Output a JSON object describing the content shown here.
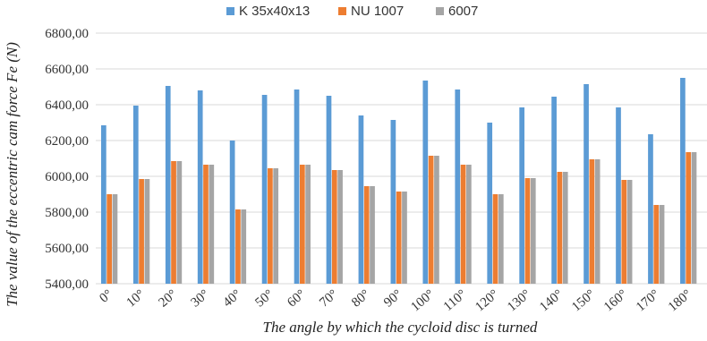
{
  "chart_data": {
    "type": "bar",
    "xlabel": "The angle by which the cycloid disc is turned",
    "ylabel": "The value of the eccentric cam force Fe (N)",
    "categories": [
      "0°",
      "10°",
      "20°",
      "30°",
      "40°",
      "50°",
      "60°",
      "70°",
      "80°",
      "90°",
      "100°",
      "110°",
      "120°",
      "130°",
      "140°",
      "150°",
      "160°",
      "170°",
      "180°"
    ],
    "series": [
      {
        "name": "K 35x40x13",
        "color": "#5b9bd5",
        "values": [
          6285,
          6395,
          6505,
          6480,
          6200,
          6455,
          6485,
          6450,
          6340,
          6315,
          6535,
          6485,
          6300,
          6385,
          6445,
          6515,
          6385,
          6235,
          6550
        ]
      },
      {
        "name": "NU 1007",
        "color": "#ed7d31",
        "values": [
          5900,
          5985,
          6085,
          6065,
          5815,
          6045,
          6065,
          6035,
          5945,
          5915,
          6115,
          6065,
          5900,
          5990,
          6025,
          6095,
          5980,
          5840,
          6135
        ]
      },
      {
        "name": "6007",
        "color": "#a5a5a5",
        "values": [
          5900,
          5985,
          6085,
          6065,
          5815,
          6045,
          6065,
          6035,
          5945,
          5915,
          6115,
          6065,
          5900,
          5990,
          6025,
          6095,
          5980,
          5840,
          6135
        ]
      }
    ],
    "ylim": [
      5400,
      6800
    ],
    "yticks": [
      "5400,00",
      "5600,00",
      "5800,00",
      "6000,00",
      "6200,00",
      "6400,00",
      "6600,00",
      "6800,00"
    ],
    "grid": true,
    "legend_position": "top"
  }
}
